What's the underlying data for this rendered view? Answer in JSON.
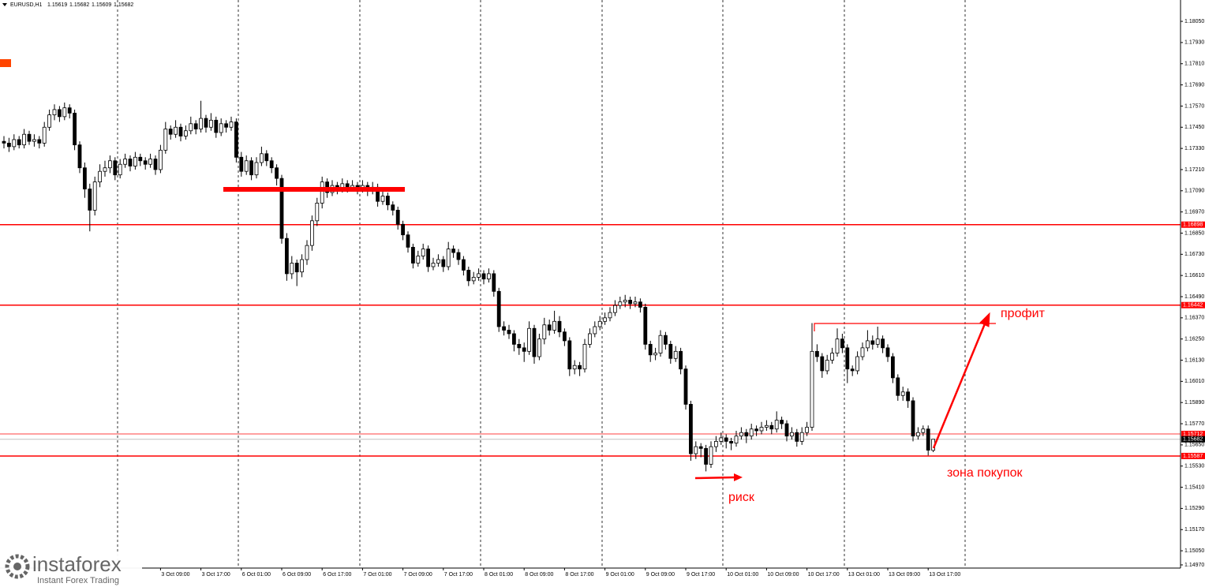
{
  "chart_data": {
    "type": "candlestick",
    "title": "EURUSD,H1",
    "ylim": [
      1.14952,
      1.18171
    ],
    "yticks": [
      {
        "value": 1.1805,
        "label": "1.18050"
      },
      {
        "value": 1.1793,
        "label": "1.17930"
      },
      {
        "value": 1.1781,
        "label": "1.17810"
      },
      {
        "value": 1.1769,
        "label": "1.17690"
      },
      {
        "value": 1.1757,
        "label": "1.17570"
      },
      {
        "value": 1.1745,
        "label": "1.17450"
      },
      {
        "value": 1.1733,
        "label": "1.17330"
      },
      {
        "value": 1.1721,
        "label": "1.17210"
      },
      {
        "value": 1.1709,
        "label": "1.17090"
      },
      {
        "value": 1.1697,
        "label": "1.16970"
      },
      {
        "value": 1.1685,
        "label": "1.16850"
      },
      {
        "value": 1.1673,
        "label": "1.16730"
      },
      {
        "value": 1.1661,
        "label": "1.16610"
      },
      {
        "value": 1.1649,
        "label": "1.16490"
      },
      {
        "value": 1.1637,
        "label": "1.16370"
      },
      {
        "value": 1.1625,
        "label": "1.16250"
      },
      {
        "value": 1.1613,
        "label": "1.16130"
      },
      {
        "value": 1.1601,
        "label": "1.16010"
      },
      {
        "value": 1.1589,
        "label": "1.15890"
      },
      {
        "value": 1.1577,
        "label": "1.15770"
      },
      {
        "value": 1.1565,
        "label": "1.15650"
      },
      {
        "value": 1.1553,
        "label": "1.15530"
      },
      {
        "value": 1.1541,
        "label": "1.15410"
      },
      {
        "value": 1.1529,
        "label": "1.15290"
      },
      {
        "value": 1.1517,
        "label": "1.15170"
      },
      {
        "value": 1.1505,
        "label": "1.15050"
      },
      {
        "value": 1.1497,
        "label": "1.14970"
      }
    ],
    "xlabels": [
      "3 Oct 09:00",
      "3 Oct 17:00",
      "6 Oct 01:00",
      "6 Oct 09:00",
      "6 Oct 17:00",
      "7 Oct 01:00",
      "7 Oct 09:00",
      "7 Oct 17:00",
      "8 Oct 01:00",
      "8 Oct 09:00",
      "8 Oct 17:00",
      "9 Oct 01:00",
      "9 Oct 09:00",
      "9 Oct 17:00",
      "10 Oct 01:00",
      "10 Oct 09:00",
      "10 Oct 17:00",
      "13 Oct 01:00",
      "13 Oct 09:00",
      "13 Oct 17:00"
    ],
    "up_color": "#ffffff",
    "down_color": "#000000",
    "level_color": "#ff0000",
    "levels": [
      1.16898,
      1.16442,
      1.15712,
      1.15587
    ],
    "annotations": {
      "profit": "профит",
      "buy_zone": "зона покупок",
      "risk": "риск"
    },
    "watermark": {
      "brand": "instaforex",
      "tagline": "Instant Forex Trading"
    },
    "ohlc": [
      [
        1.1737,
        1.174,
        1.1733,
        1.1736
      ],
      [
        1.1736,
        1.1739,
        1.1731,
        1.1734
      ],
      [
        1.1734,
        1.1741,
        1.1732,
        1.1738
      ],
      [
        1.1738,
        1.174,
        1.1733,
        1.1735
      ],
      [
        1.1735,
        1.1744,
        1.1733,
        1.1741
      ],
      [
        1.1741,
        1.1743,
        1.1735,
        1.1737
      ],
      [
        1.1737,
        1.1741,
        1.1734,
        1.1738
      ],
      [
        1.1738,
        1.174,
        1.1733,
        1.1736
      ],
      [
        1.1736,
        1.1748,
        1.1734,
        1.1745
      ],
      [
        1.1745,
        1.1755,
        1.1743,
        1.1752
      ],
      [
        1.1752,
        1.1758,
        1.1749,
        1.1755
      ],
      [
        1.1755,
        1.1757,
        1.1748,
        1.1751
      ],
      [
        1.1751,
        1.1759,
        1.1749,
        1.1756
      ],
      [
        1.1756,
        1.1758,
        1.175,
        1.1753
      ],
      [
        1.1753,
        1.1755,
        1.1732,
        1.1735
      ],
      [
        1.1735,
        1.1737,
        1.1719,
        1.1722
      ],
      [
        1.1722,
        1.1725,
        1.1705,
        1.171
      ],
      [
        1.171,
        1.1713,
        1.1686,
        1.1698
      ],
      [
        1.1698,
        1.1717,
        1.1695,
        1.1714
      ],
      [
        1.1714,
        1.1724,
        1.1711,
        1.172
      ],
      [
        1.172,
        1.1726,
        1.1717,
        1.1722
      ],
      [
        1.1722,
        1.1729,
        1.1719,
        1.1726
      ],
      [
        1.1726,
        1.1728,
        1.1715,
        1.1718
      ],
      [
        1.1718,
        1.1727,
        1.1716,
        1.1724
      ],
      [
        1.1724,
        1.173,
        1.1722,
        1.1727
      ],
      [
        1.1727,
        1.1729,
        1.172,
        1.1723
      ],
      [
        1.1723,
        1.1731,
        1.1721,
        1.1728
      ],
      [
        1.1728,
        1.173,
        1.1723,
        1.1726
      ],
      [
        1.1726,
        1.1728,
        1.1721,
        1.1724
      ],
      [
        1.1724,
        1.173,
        1.1722,
        1.1727
      ],
      [
        1.1727,
        1.1729,
        1.1718,
        1.1721
      ],
      [
        1.1721,
        1.1735,
        1.1719,
        1.1732
      ],
      [
        1.1732,
        1.1748,
        1.173,
        1.1744
      ],
      [
        1.1744,
        1.1746,
        1.1738,
        1.1741
      ],
      [
        1.1741,
        1.1749,
        1.1739,
        1.1745
      ],
      [
        1.1745,
        1.1747,
        1.1737,
        1.174
      ],
      [
        1.174,
        1.1746,
        1.1738,
        1.1743
      ],
      [
        1.1743,
        1.1751,
        1.1741,
        1.1747
      ],
      [
        1.1747,
        1.1749,
        1.1741,
        1.1744
      ],
      [
        1.1744,
        1.176,
        1.1742,
        1.175
      ],
      [
        1.175,
        1.1752,
        1.1742,
        1.1745
      ],
      [
        1.1745,
        1.1753,
        1.1743,
        1.1749
      ],
      [
        1.1749,
        1.1751,
        1.1739,
        1.1742
      ],
      [
        1.1742,
        1.175,
        1.174,
        1.1747
      ],
      [
        1.1747,
        1.1749,
        1.1742,
        1.1745
      ],
      [
        1.1745,
        1.1751,
        1.1743,
        1.1748
      ],
      [
        1.1748,
        1.175,
        1.1725,
        1.1728
      ],
      [
        1.1728,
        1.1731,
        1.1717,
        1.172
      ],
      [
        1.172,
        1.1729,
        1.1718,
        1.1726
      ],
      [
        1.1726,
        1.1728,
        1.1715,
        1.1718
      ],
      [
        1.1718,
        1.1728,
        1.1716,
        1.1725
      ],
      [
        1.1725,
        1.1734,
        1.1723,
        1.173
      ],
      [
        1.173,
        1.1732,
        1.1723,
        1.1726
      ],
      [
        1.1726,
        1.1728,
        1.1719,
        1.1722
      ],
      [
        1.1722,
        1.1724,
        1.1712,
        1.1716
      ],
      [
        1.1716,
        1.1718,
        1.1679,
        1.1682
      ],
      [
        1.1682,
        1.1685,
        1.1658,
        1.1662
      ],
      [
        1.1662,
        1.1672,
        1.1659,
        1.1668
      ],
      [
        1.1668,
        1.167,
        1.1655,
        1.1663
      ],
      [
        1.1663,
        1.1673,
        1.166,
        1.167
      ],
      [
        1.167,
        1.1681,
        1.1667,
        1.1678
      ],
      [
        1.1678,
        1.1695,
        1.1675,
        1.1692
      ],
      [
        1.1692,
        1.1705,
        1.1689,
        1.1702
      ],
      [
        1.1702,
        1.1717,
        1.1699,
        1.1714
      ],
      [
        1.1714,
        1.1716,
        1.1705,
        1.1708
      ],
      [
        1.1708,
        1.1715,
        1.1706,
        1.1712
      ],
      [
        1.1712,
        1.1714,
        1.1707,
        1.171
      ],
      [
        1.171,
        1.1716,
        1.1708,
        1.1713
      ],
      [
        1.1713,
        1.1715,
        1.1708,
        1.1711
      ],
      [
        1.1711,
        1.1715,
        1.1709,
        1.1712
      ],
      [
        1.1712,
        1.1714,
        1.1707,
        1.171
      ],
      [
        1.171,
        1.1715,
        1.1708,
        1.1712
      ],
      [
        1.1712,
        1.1714,
        1.1706,
        1.1709
      ],
      [
        1.1709,
        1.1714,
        1.1707,
        1.1711
      ],
      [
        1.1711,
        1.1713,
        1.17,
        1.1703
      ],
      [
        1.1703,
        1.1709,
        1.1701,
        1.1706
      ],
      [
        1.1706,
        1.1708,
        1.1698,
        1.1701
      ],
      [
        1.1701,
        1.1703,
        1.1695,
        1.1698
      ],
      [
        1.1698,
        1.17,
        1.1687,
        1.169
      ],
      [
        1.169,
        1.1692,
        1.1681,
        1.1684
      ],
      [
        1.1684,
        1.1686,
        1.1674,
        1.1677
      ],
      [
        1.1677,
        1.1679,
        1.1665,
        1.1668
      ],
      [
        1.1668,
        1.1675,
        1.1666,
        1.1672
      ],
      [
        1.1672,
        1.1679,
        1.167,
        1.1676
      ],
      [
        1.1676,
        1.1678,
        1.1663,
        1.1666
      ],
      [
        1.1666,
        1.1671,
        1.1664,
        1.1668
      ],
      [
        1.1668,
        1.1673,
        1.1666,
        1.167
      ],
      [
        1.167,
        1.1672,
        1.1663,
        1.1666
      ],
      [
        1.1666,
        1.168,
        1.1664,
        1.1676
      ],
      [
        1.1676,
        1.1678,
        1.1671,
        1.1674
      ],
      [
        1.1674,
        1.1676,
        1.1667,
        1.167
      ],
      [
        1.167,
        1.1672,
        1.1661,
        1.1664
      ],
      [
        1.1664,
        1.1666,
        1.1655,
        1.1658
      ],
      [
        1.1658,
        1.1663,
        1.1656,
        1.166
      ],
      [
        1.166,
        1.1665,
        1.1658,
        1.1662
      ],
      [
        1.1662,
        1.1664,
        1.1656,
        1.1659
      ],
      [
        1.1659,
        1.1665,
        1.1657,
        1.1662
      ],
      [
        1.1662,
        1.1664,
        1.1649,
        1.1652
      ],
      [
        1.1652,
        1.1654,
        1.1629,
        1.1632
      ],
      [
        1.1632,
        1.1635,
        1.1627,
        1.163
      ],
      [
        1.163,
        1.1633,
        1.1625,
        1.1628
      ],
      [
        1.1628,
        1.163,
        1.1618,
        1.1622
      ],
      [
        1.1622,
        1.1625,
        1.1616,
        1.162
      ],
      [
        1.162,
        1.1623,
        1.1612,
        1.1618
      ],
      [
        1.1618,
        1.1635,
        1.1616,
        1.1631
      ],
      [
        1.1631,
        1.1633,
        1.1611,
        1.1615
      ],
      [
        1.1615,
        1.1628,
        1.1613,
        1.1625
      ],
      [
        1.1625,
        1.1637,
        1.1622,
        1.1633
      ],
      [
        1.1633,
        1.1636,
        1.1627,
        1.163
      ],
      [
        1.163,
        1.1641,
        1.1628,
        1.1635
      ],
      [
        1.1635,
        1.1638,
        1.1626,
        1.1629
      ],
      [
        1.1629,
        1.1631,
        1.1621,
        1.1624
      ],
      [
        1.1624,
        1.1626,
        1.1604,
        1.1608
      ],
      [
        1.1608,
        1.1613,
        1.1605,
        1.161
      ],
      [
        1.161,
        1.1612,
        1.1604,
        1.1608
      ],
      [
        1.1608,
        1.1625,
        1.1606,
        1.1622
      ],
      [
        1.1622,
        1.1631,
        1.162,
        1.1628
      ],
      [
        1.1628,
        1.1635,
        1.1626,
        1.1632
      ],
      [
        1.1632,
        1.1638,
        1.163,
        1.1635
      ],
      [
        1.1635,
        1.164,
        1.1633,
        1.1637
      ],
      [
        1.1637,
        1.1643,
        1.1635,
        1.164
      ],
      [
        1.164,
        1.1647,
        1.1638,
        1.1644
      ],
      [
        1.1644,
        1.1649,
        1.1642,
        1.1646
      ],
      [
        1.1646,
        1.165,
        1.1643,
        1.1647
      ],
      [
        1.1647,
        1.1649,
        1.1642,
        1.1645
      ],
      [
        1.1645,
        1.1649,
        1.1643,
        1.1646
      ],
      [
        1.1646,
        1.1648,
        1.164,
        1.1643
      ],
      [
        1.1643,
        1.1645,
        1.1619,
        1.1622
      ],
      [
        1.1622,
        1.1624,
        1.1612,
        1.1616
      ],
      [
        1.1616,
        1.162,
        1.1613,
        1.1617
      ],
      [
        1.1617,
        1.163,
        1.1615,
        1.1627
      ],
      [
        1.1627,
        1.1629,
        1.1619,
        1.1622
      ],
      [
        1.1622,
        1.1624,
        1.1611,
        1.1614
      ],
      [
        1.1614,
        1.1621,
        1.1612,
        1.1618
      ],
      [
        1.1618,
        1.162,
        1.1605,
        1.1608
      ],
      [
        1.1608,
        1.161,
        1.1585,
        1.1588
      ],
      [
        1.1588,
        1.159,
        1.1556,
        1.156
      ],
      [
        1.156,
        1.1567,
        1.1557,
        1.1564
      ],
      [
        1.1564,
        1.1566,
        1.1558,
        1.1563
      ],
      [
        1.1563,
        1.1565,
        1.155,
        1.1554
      ],
      [
        1.1554,
        1.1567,
        1.1552,
        1.1564
      ],
      [
        1.1564,
        1.157,
        1.1561,
        1.1567
      ],
      [
        1.1567,
        1.1572,
        1.1565,
        1.1569
      ],
      [
        1.1569,
        1.1571,
        1.1563,
        1.1567
      ],
      [
        1.1567,
        1.1569,
        1.1562,
        1.1566
      ],
      [
        1.1566,
        1.1573,
        1.1564,
        1.157
      ],
      [
        1.157,
        1.1575,
        1.1568,
        1.1572
      ],
      [
        1.1572,
        1.1574,
        1.1566,
        1.157
      ],
      [
        1.157,
        1.1577,
        1.1568,
        1.1574
      ],
      [
        1.1574,
        1.1576,
        1.157,
        1.1573
      ],
      [
        1.1573,
        1.1578,
        1.1571,
        1.1575
      ],
      [
        1.1575,
        1.1579,
        1.1573,
        1.1576
      ],
      [
        1.1576,
        1.1578,
        1.1571,
        1.1574
      ],
      [
        1.1574,
        1.1584,
        1.1572,
        1.1579
      ],
      [
        1.1579,
        1.1581,
        1.1574,
        1.1577
      ],
      [
        1.1577,
        1.1579,
        1.1567,
        1.157
      ],
      [
        1.157,
        1.1575,
        1.1568,
        1.1572
      ],
      [
        1.1572,
        1.1574,
        1.1564,
        1.1567
      ],
      [
        1.1567,
        1.1575,
        1.1565,
        1.1572
      ],
      [
        1.1572,
        1.1578,
        1.157,
        1.1575
      ],
      [
        1.1575,
        1.1634,
        1.1573,
        1.1618
      ],
      [
        1.1618,
        1.1622,
        1.1612,
        1.1615
      ],
      [
        1.1615,
        1.1617,
        1.1603,
        1.1607
      ],
      [
        1.1607,
        1.1616,
        1.1605,
        1.1613
      ],
      [
        1.1613,
        1.162,
        1.1611,
        1.1617
      ],
      [
        1.1617,
        1.1631,
        1.1615,
        1.1625
      ],
      [
        1.1625,
        1.1628,
        1.1617,
        1.162
      ],
      [
        1.162,
        1.1622,
        1.16,
        1.1608
      ],
      [
        1.1608,
        1.161,
        1.1604,
        1.1607
      ],
      [
        1.1607,
        1.1618,
        1.1605,
        1.1615
      ],
      [
        1.1615,
        1.1623,
        1.1613,
        1.162
      ],
      [
        1.162,
        1.163,
        1.1618,
        1.1624
      ],
      [
        1.1624,
        1.1627,
        1.1619,
        1.1622
      ],
      [
        1.1622,
        1.1632,
        1.162,
        1.1625
      ],
      [
        1.1625,
        1.1627,
        1.1617,
        1.162
      ],
      [
        1.162,
        1.1622,
        1.1612,
        1.1615
      ],
      [
        1.1615,
        1.1617,
        1.16,
        1.1603
      ],
      [
        1.1603,
        1.1605,
        1.159,
        1.1593
      ],
      [
        1.1593,
        1.1598,
        1.159,
        1.1595
      ],
      [
        1.1595,
        1.1597,
        1.1586,
        1.159
      ],
      [
        1.159,
        1.1592,
        1.1567,
        1.157
      ],
      [
        1.157,
        1.1575,
        1.1568,
        1.1572
      ],
      [
        1.1572,
        1.1576,
        1.157,
        1.1574
      ],
      [
        1.1574,
        1.1576,
        1.1559,
        1.1562
      ],
      [
        1.15619,
        1.15682,
        1.15609,
        1.15682
      ]
    ]
  }
}
